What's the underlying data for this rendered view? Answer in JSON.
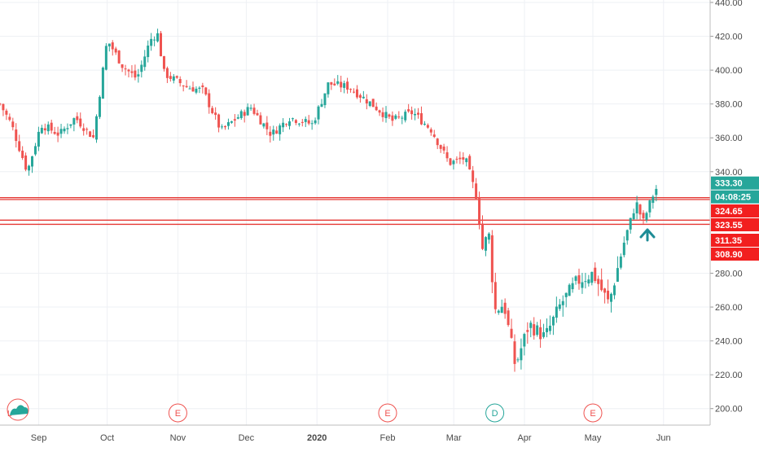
{
  "chart_data": {
    "type": "candlestick",
    "x_labels": [
      "Sep",
      "Oct",
      "Nov",
      "Dec",
      "2020",
      "Feb",
      "Mar",
      "Apr",
      "May",
      "Jun"
    ],
    "y_ticks": [
      200,
      220,
      240,
      260,
      280,
      340,
      360,
      380,
      400,
      420,
      440
    ],
    "y_tick_labels": [
      "200.00",
      "220.00",
      "240.00",
      "260.00",
      "280.00",
      "340.00",
      "360.00",
      "380.00",
      "400.00",
      "420.00",
      "440.00"
    ],
    "ylim": [
      194,
      442
    ],
    "grid": true,
    "colors": {
      "up": "#26a69a",
      "down": "#ef5350",
      "line": "#e53935",
      "label_red": "#f21f1f",
      "label_green": "#26a69a",
      "arrow": "#1e8c96"
    },
    "price_badge": {
      "value": "333.30",
      "countdown": "04:08:25"
    },
    "level_lines": [
      {
        "value": 324.65,
        "label": "324.65"
      },
      {
        "value": 323.55,
        "label": "323.55"
      },
      {
        "value": 311.35,
        "label": "311.35"
      },
      {
        "value": 308.9,
        "label": "308.90"
      }
    ],
    "events": [
      {
        "label": "E",
        "at_date": "2019-11-01"
      },
      {
        "label": "E",
        "at_date": "2020-02-01"
      },
      {
        "label": "D",
        "at_date": "2020-03-19"
      },
      {
        "label": "E",
        "at_date": "2020-05-01"
      }
    ],
    "price_path": [
      [
        "2019-08-15",
        380
      ],
      [
        "2019-08-20",
        368
      ],
      [
        "2019-08-27",
        340
      ],
      [
        "2019-09-02",
        368
      ],
      [
        "2019-09-10",
        362
      ],
      [
        "2019-09-17",
        372
      ],
      [
        "2019-09-25",
        360
      ],
      [
        "2019-10-01",
        418
      ],
      [
        "2019-10-08",
        402
      ],
      [
        "2019-10-14",
        395
      ],
      [
        "2019-10-20",
        418
      ],
      [
        "2019-10-23",
        422
      ],
      [
        "2019-10-26",
        398
      ],
      [
        "2019-11-05",
        390
      ],
      [
        "2019-11-12",
        388
      ],
      [
        "2019-11-20",
        364
      ],
      [
        "2019-11-27",
        372
      ],
      [
        "2019-12-03",
        378
      ],
      [
        "2019-12-12",
        362
      ],
      [
        "2019-12-20",
        372
      ],
      [
        "2019-12-30",
        368
      ],
      [
        "2020-01-06",
        392
      ],
      [
        "2020-01-15",
        390
      ],
      [
        "2020-01-25",
        380
      ],
      [
        "2020-02-03",
        370
      ],
      [
        "2020-02-12",
        375
      ],
      [
        "2020-02-20",
        365
      ],
      [
        "2020-02-28",
        345
      ],
      [
        "2020-03-06",
        348
      ],
      [
        "2020-03-11",
        325
      ],
      [
        "2020-03-14",
        290
      ],
      [
        "2020-03-16",
        310
      ],
      [
        "2020-03-19",
        258
      ],
      [
        "2020-03-23",
        262
      ],
      [
        "2020-03-28",
        225
      ],
      [
        "2020-04-03",
        250
      ],
      [
        "2020-04-10",
        242
      ],
      [
        "2020-04-17",
        262
      ],
      [
        "2020-04-24",
        275
      ],
      [
        "2020-05-01",
        280
      ],
      [
        "2020-05-08",
        262
      ],
      [
        "2020-05-15",
        300
      ],
      [
        "2020-05-20",
        322
      ],
      [
        "2020-05-23",
        310
      ],
      [
        "2020-05-27",
        325
      ],
      [
        "2020-05-30",
        333.3
      ]
    ]
  }
}
